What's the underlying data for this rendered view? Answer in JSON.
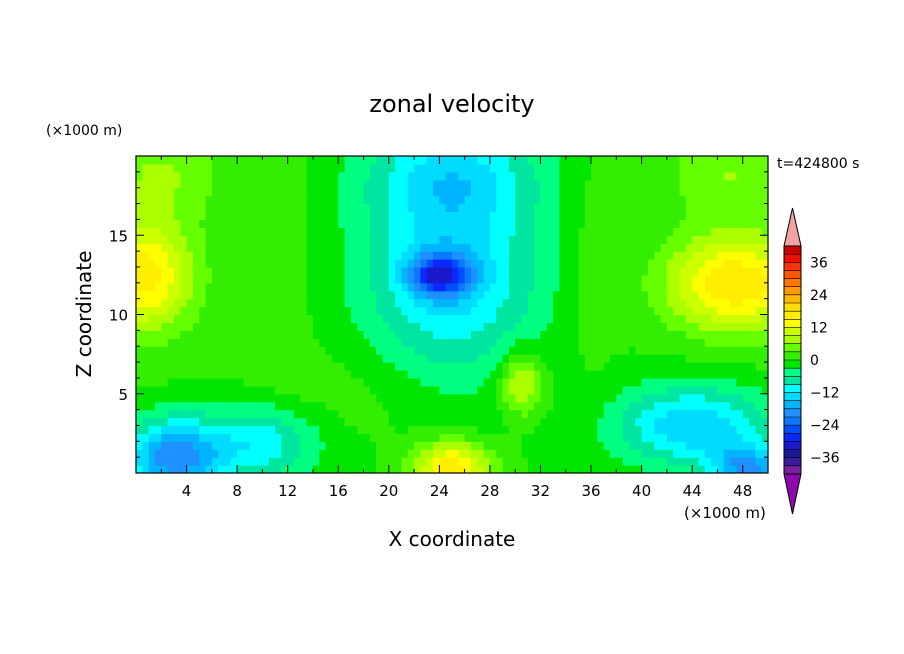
{
  "chart_data": {
    "type": "heatmap",
    "title": "zonal velocity",
    "xlabel": "X coordinate",
    "ylabel": "Z coordinate",
    "x_unit": "(×1000 m)",
    "z_unit": "(×1000 m)",
    "time_label": "t=424800 s",
    "xlim": [
      0,
      50
    ],
    "ylim": [
      0,
      20
    ],
    "x_ticks": [
      "4",
      "8",
      "12",
      "16",
      "20",
      "24",
      "28",
      "32",
      "36",
      "40",
      "44",
      "48"
    ],
    "y_ticks": [
      "5",
      "10",
      "15"
    ],
    "colorbar": {
      "tick_labels": [
        "36",
        "24",
        "12",
        "0",
        "−12",
        "−24",
        "−36"
      ],
      "levels": [
        -42,
        -39,
        -36,
        -33,
        -30,
        -27,
        -24,
        -21,
        -18,
        -15,
        -12,
        -9,
        -6,
        -3,
        0,
        3,
        6,
        9,
        12,
        15,
        18,
        21,
        24,
        27,
        30,
        33,
        36,
        39,
        42
      ],
      "colors": [
        "#7a1fa0",
        "#3a1a99",
        "#1a1a99",
        "#1a1acc",
        "#0a28ff",
        "#0050ff",
        "#0a78ff",
        "#1e90ff",
        "#00b4ff",
        "#00dcff",
        "#00ffff",
        "#00e6a0",
        "#00ff80",
        "#00e600",
        "#33ee00",
        "#66ff00",
        "#aaff00",
        "#ccff00",
        "#ffff00",
        "#ffee00",
        "#ffdd00",
        "#ffbb00",
        "#ff9900",
        "#ff7700",
        "#ff5500",
        "#ff3300",
        "#ee1100",
        "#cc0000"
      ],
      "under_color": "#8b0bab",
      "over_color": "#f2a2a2"
    },
    "features": [
      {
        "x": 0.5,
        "z": 12.5,
        "u": 17,
        "sx": 4.0,
        "sz": 3.5
      },
      {
        "x": 47.5,
        "z": 12.0,
        "u": 18,
        "sx": 5.5,
        "sz": 3.0
      },
      {
        "x": 24.0,
        "z": 12.5,
        "u": -20,
        "sx": 2.4,
        "sz": 1.3
      },
      {
        "x": 25.0,
        "z": 13.0,
        "u": -14,
        "sx": 7.0,
        "sz": 7.0
      },
      {
        "x": 25.0,
        "z": 19.0,
        "u": -8,
        "sx": 7.0,
        "sz": 3.0
      },
      {
        "x": 3.0,
        "z": 1.0,
        "u": -20,
        "sx": 4.0,
        "sz": 2.5
      },
      {
        "x": 10.0,
        "z": 2.0,
        "u": -11,
        "sx": 4.5,
        "sz": 2.5
      },
      {
        "x": 44.0,
        "z": 3.0,
        "u": -15,
        "sx": 6.0,
        "sz": 2.5
      },
      {
        "x": 48.5,
        "z": 0.3,
        "u": -17,
        "sx": 3.0,
        "sz": 1.5
      },
      {
        "x": 25.0,
        "z": 0.5,
        "u": 17,
        "sx": 3.0,
        "sz": 1.5
      },
      {
        "x": 30.5,
        "z": 5.7,
        "u": 11,
        "sx": 1.7,
        "sz": 2.0
      },
      {
        "x": 2.0,
        "z": 19.0,
        "u": 6,
        "sx": 5.0,
        "sz": 3.0
      },
      {
        "x": 47.0,
        "z": 19.0,
        "u": 6,
        "sx": 5.0,
        "sz": 3.0
      },
      {
        "x": 16.0,
        "z": 5.0,
        "u": 2,
        "sx": 10.0,
        "sz": 3.0
      },
      {
        "x": 12.0,
        "z": 14.0,
        "u": 2,
        "sx": 2.0,
        "sz": 8.0
      },
      {
        "x": 36.0,
        "z": 14.0,
        "u": 2,
        "sx": 2.0,
        "sz": 8.0
      }
    ]
  }
}
